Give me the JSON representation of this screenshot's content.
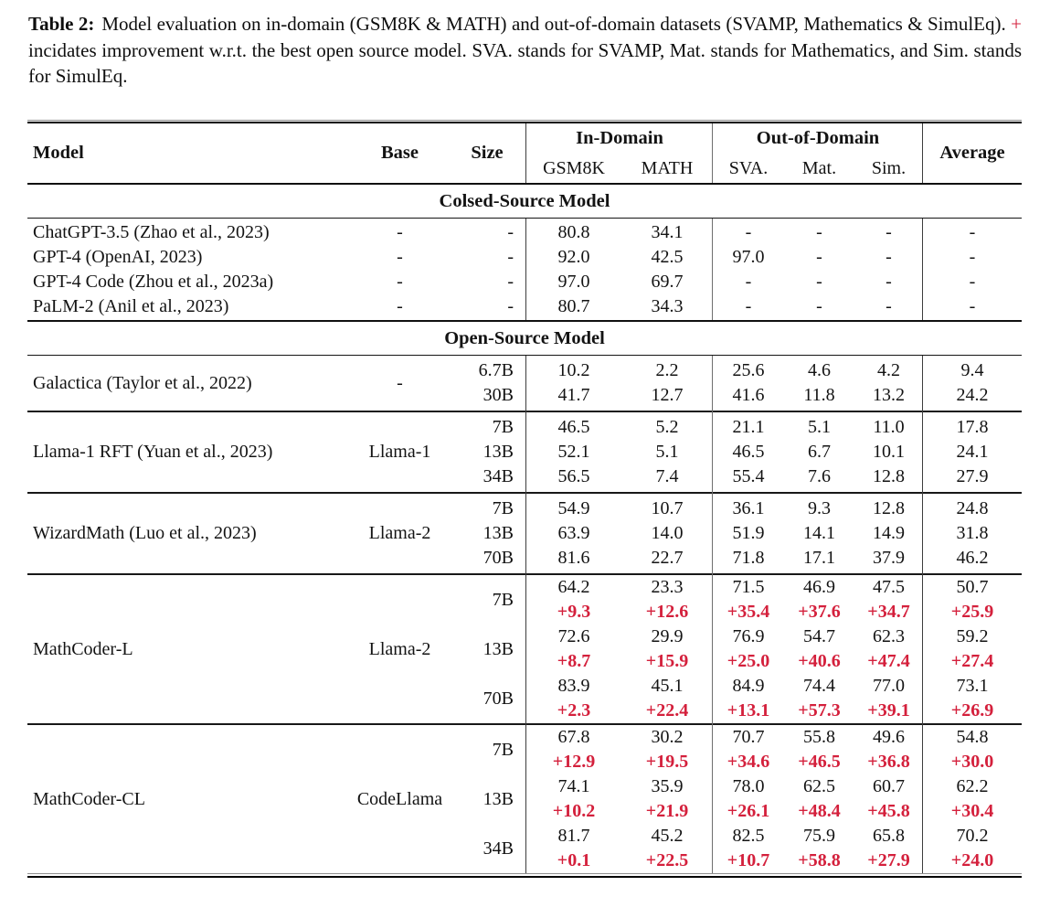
{
  "colors": {
    "accent_red": "#d4203c",
    "rule_dark": "#101010"
  },
  "caption": {
    "label": "Table 2:",
    "part1": "Model evaluation on in-domain (GSM8K & MATH) and out-of-domain datasets (SVAMP, Mathematics & SimulEq).",
    "plus": "+",
    "part2": "incidates improvement w.r.t. the best open source model. SVA. stands for SVAMP, Mat. stands for Mathematics, and Sim. stands for SimulEq."
  },
  "header": {
    "model": "Model",
    "base": "Base",
    "size": "Size",
    "in_domain": "In-Domain",
    "out_of_domain": "Out-of-Domain",
    "sub_columns": [
      "GSM8K",
      "MATH",
      "SVA.",
      "Mat.",
      "Sim."
    ],
    "average": "Average"
  },
  "sections": [
    {
      "title": "Colsed-Source Model",
      "groups": [
        {
          "model": "ChatGPT-3.5 (Zhao et al., 2023)",
          "base": "-",
          "rows": [
            {
              "size": "-",
              "values": [
                "80.8",
                "34.1",
                "-",
                "-",
                "-",
                "-"
              ]
            }
          ]
        },
        {
          "model": "GPT-4 (OpenAI, 2023)",
          "base": "-",
          "rows": [
            {
              "size": "-",
              "values": [
                "92.0",
                "42.5",
                "97.0",
                "-",
                "-",
                "-"
              ]
            }
          ]
        },
        {
          "model": "GPT-4 Code (Zhou et al., 2023a)",
          "base": "-",
          "rows": [
            {
              "size": "-",
              "values": [
                "97.0",
                "69.7",
                "-",
                "-",
                "-",
                "-"
              ]
            }
          ]
        },
        {
          "model": "PaLM-2 (Anil et al., 2023)",
          "base": "-",
          "rows": [
            {
              "size": "-",
              "values": [
                "80.7",
                "34.3",
                "-",
                "-",
                "-",
                "-"
              ]
            }
          ]
        }
      ]
    },
    {
      "title": "Open-Source Model",
      "groups": [
        {
          "model": "Galactica (Taylor et al., 2022)",
          "base": "-",
          "rows": [
            {
              "size": "6.7B",
              "values": [
                "10.2",
                "2.2",
                "25.6",
                "4.6",
                "4.2",
                "9.4"
              ]
            },
            {
              "size": "30B",
              "values": [
                "41.7",
                "12.7",
                "41.6",
                "11.8",
                "13.2",
                "24.2"
              ]
            }
          ]
        },
        {
          "model": "Llama-1 RFT (Yuan et al., 2023)",
          "base": "Llama-1",
          "rows": [
            {
              "size": "7B",
              "values": [
                "46.5",
                "5.2",
                "21.1",
                "5.1",
                "11.0",
                "17.8"
              ]
            },
            {
              "size": "13B",
              "values": [
                "52.1",
                "5.1",
                "46.5",
                "6.7",
                "10.1",
                "24.1"
              ]
            },
            {
              "size": "34B",
              "values": [
                "56.5",
                "7.4",
                "55.4",
                "7.6",
                "12.8",
                "27.9"
              ]
            }
          ]
        },
        {
          "model": "WizardMath (Luo et al., 2023)",
          "base": "Llama-2",
          "rows": [
            {
              "size": "7B",
              "values": [
                "54.9",
                "10.7",
                "36.1",
                "9.3",
                "12.8",
                "24.8"
              ]
            },
            {
              "size": "13B",
              "values": [
                "63.9",
                "14.0",
                "51.9",
                "14.1",
                "14.9",
                "31.8"
              ]
            },
            {
              "size": "70B",
              "values": [
                "81.6",
                "22.7",
                "71.8",
                "17.1",
                "37.9",
                "46.2"
              ]
            }
          ]
        },
        {
          "model": "MathCoder-L",
          "base": "Llama-2",
          "compact": true,
          "rows": [
            {
              "size": "7B",
              "values": [
                "64.2",
                "23.3",
                "71.5",
                "46.9",
                "47.5",
                "50.7"
              ],
              "deltas": [
                "+9.3",
                "+12.6",
                "+35.4",
                "+37.6",
                "+34.7",
                "+25.9"
              ]
            },
            {
              "size": "13B",
              "values": [
                "72.6",
                "29.9",
                "76.9",
                "54.7",
                "62.3",
                "59.2"
              ],
              "deltas": [
                "+8.7",
                "+15.9",
                "+25.0",
                "+40.6",
                "+47.4",
                "+27.4"
              ]
            },
            {
              "size": "70B",
              "values": [
                "83.9",
                "45.1",
                "84.9",
                "74.4",
                "77.0",
                "73.1"
              ],
              "deltas": [
                "+2.3",
                "+22.4",
                "+13.1",
                "+57.3",
                "+39.1",
                "+26.9"
              ]
            }
          ]
        },
        {
          "model": "MathCoder-CL",
          "base": "CodeLlama",
          "compact": true,
          "rows": [
            {
              "size": "7B",
              "values": [
                "67.8",
                "30.2",
                "70.7",
                "55.8",
                "49.6",
                "54.8"
              ],
              "deltas": [
                "+12.9",
                "+19.5",
                "+34.6",
                "+46.5",
                "+36.8",
                "+30.0"
              ]
            },
            {
              "size": "13B",
              "values": [
                "74.1",
                "35.9",
                "78.0",
                "62.5",
                "60.7",
                "62.2"
              ],
              "deltas": [
                "+10.2",
                "+21.9",
                "+26.1",
                "+48.4",
                "+45.8",
                "+30.4"
              ]
            },
            {
              "size": "34B",
              "values": [
                "81.7",
                "45.2",
                "82.5",
                "75.9",
                "65.8",
                "70.2"
              ],
              "deltas": [
                "+0.1",
                "+22.5",
                "+10.7",
                "+58.8",
                "+27.9",
                "+24.0"
              ]
            }
          ]
        }
      ]
    }
  ]
}
